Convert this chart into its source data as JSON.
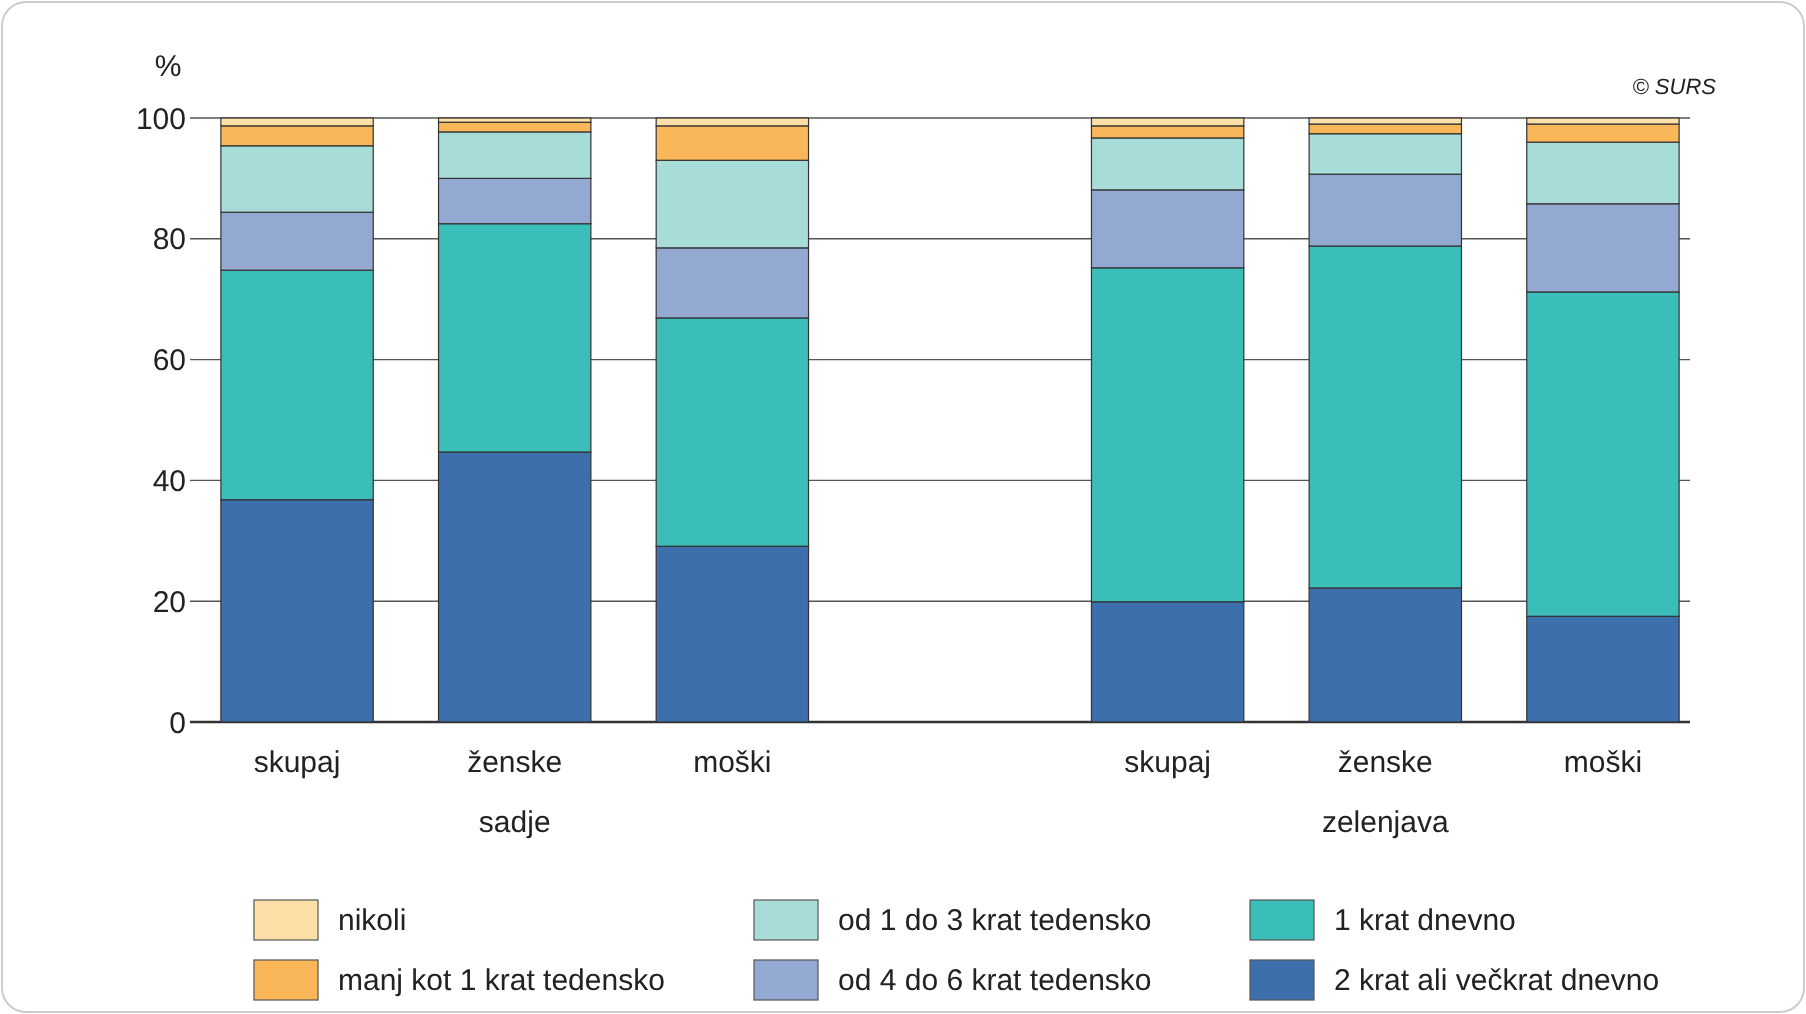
{
  "chart_data": {
    "type": "bar",
    "stacked": true,
    "ylabel": "%",
    "categories": [
      "skupaj",
      "ženske",
      "moški",
      null,
      "skupaj",
      "ženske",
      "moški"
    ],
    "series": [
      {
        "name": "2 krat ali večkrat dnevno",
        "color": "#3e6fad",
        "values": [
          36.8,
          44.7,
          29.1,
          null,
          19.9,
          22.2,
          17.5
        ]
      },
      {
        "name": "1 krat dnevno",
        "color": "#3bbdb9",
        "values": [
          38,
          37.8,
          37.8,
          null,
          55.3,
          56.6,
          53.7
        ]
      },
      {
        "name": "od 4 do 6 krat tedensko",
        "color": "#94a9d1",
        "values": [
          9.6,
          7.5,
          11.6,
          null,
          12.9,
          11.9,
          14.6
        ]
      },
      {
        "name": "od 1 do 3 krat tedensko",
        "color": "#a8dcd9",
        "values": [
          11,
          7.7,
          14.5,
          null,
          8.6,
          6.7,
          10.2
        ]
      },
      {
        "name": "manj kot 1 krat tedensko",
        "color": "#f9b75a",
        "values": [
          3.3,
          1.6,
          5.7,
          null,
          2,
          1.6,
          3
        ]
      },
      {
        "name": "nikoli",
        "color": "#fde0a8",
        "values": [
          1.3,
          0.7,
          1.3,
          null,
          1.3,
          1,
          1
        ]
      }
    ],
    "ylim": [
      0,
      100
    ],
    "yticks": [
      0,
      20,
      40,
      60,
      80,
      100
    ],
    "grid": "y",
    "legend": "bottom",
    "annotations": [
      "sadje",
      "zelenjava",
      "© SURS"
    ]
  }
}
